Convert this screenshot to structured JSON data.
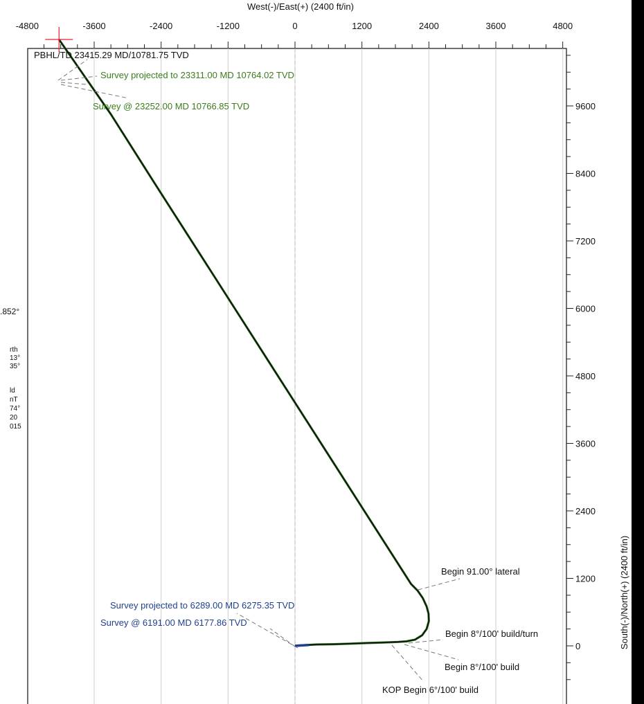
{
  "chart_data": {
    "type": "line",
    "title": "",
    "xlabel": "West(-)/East(+) (2400 ft/in)",
    "ylabel": "South(-)/North(+) (2400 ft/in)",
    "xlim": [
      -4800,
      4800
    ],
    "ylim": [
      -800,
      11000
    ],
    "x_ticks": [
      -4800,
      -3600,
      -2400,
      -1200,
      0,
      1200,
      2400,
      3600,
      4800
    ],
    "y_ticks": [
      0,
      1200,
      2400,
      3600,
      4800,
      6000,
      7200,
      8400,
      9600
    ],
    "grid": true,
    "colors": {
      "wellpath": "#111111",
      "survey_overlay": "#2e7d1f",
      "survey_top": "#1f3f8f",
      "green_annotation": "#3a7d1a",
      "blue_annotation": "#1f3f8f",
      "black_annotation": "#111111",
      "target_cross": "#e8202a",
      "grid": "#cfcfcf"
    },
    "series": [
      {
        "x": [
          0,
          50,
          200,
          400,
          700,
          1000,
          1300,
          1600,
          1850,
          2000,
          2150,
          2280,
          2360,
          2400,
          2395,
          2360,
          2290,
          2200,
          2080,
          1500,
          500,
          -500,
          -1500,
          -2500,
          -3300,
          -4230
        ],
        "y": [
          0,
          5,
          15,
          25,
          30,
          40,
          50,
          60,
          70,
          80,
          110,
          190,
          300,
          440,
          570,
          700,
          850,
          980,
          1100,
          2000,
          3550,
          5100,
          6650,
          8200,
          9450,
          10781.75
        ]
      }
    ],
    "annotations": {
      "pbhl": "PBHL/TD 23415.29 MD/10781.75 TVD",
      "survey_projected_top": "Survey projected to 23311.00 MD 10764.02 TVD",
      "survey_top": "Survey @ 23252.00 MD 10766.85 TVD",
      "begin_lateral": "Begin 91.00° lateral",
      "survey_projected_low": "Survey projected to 6289.00 MD 6275.35 TVD",
      "survey_low": "Survey @ 6191.00 MD 6177.86 TVD",
      "build_turn": "Begin 8°/100' build/turn",
      "build": "Begin 8°/100' build",
      "kop": "KOP Begin 6°/100' build"
    },
    "side_fragments": [
      ".852°",
      "rth",
      "13°",
      "35°",
      "ld",
      "nT",
      "74°",
      "20",
      "015"
    ]
  }
}
